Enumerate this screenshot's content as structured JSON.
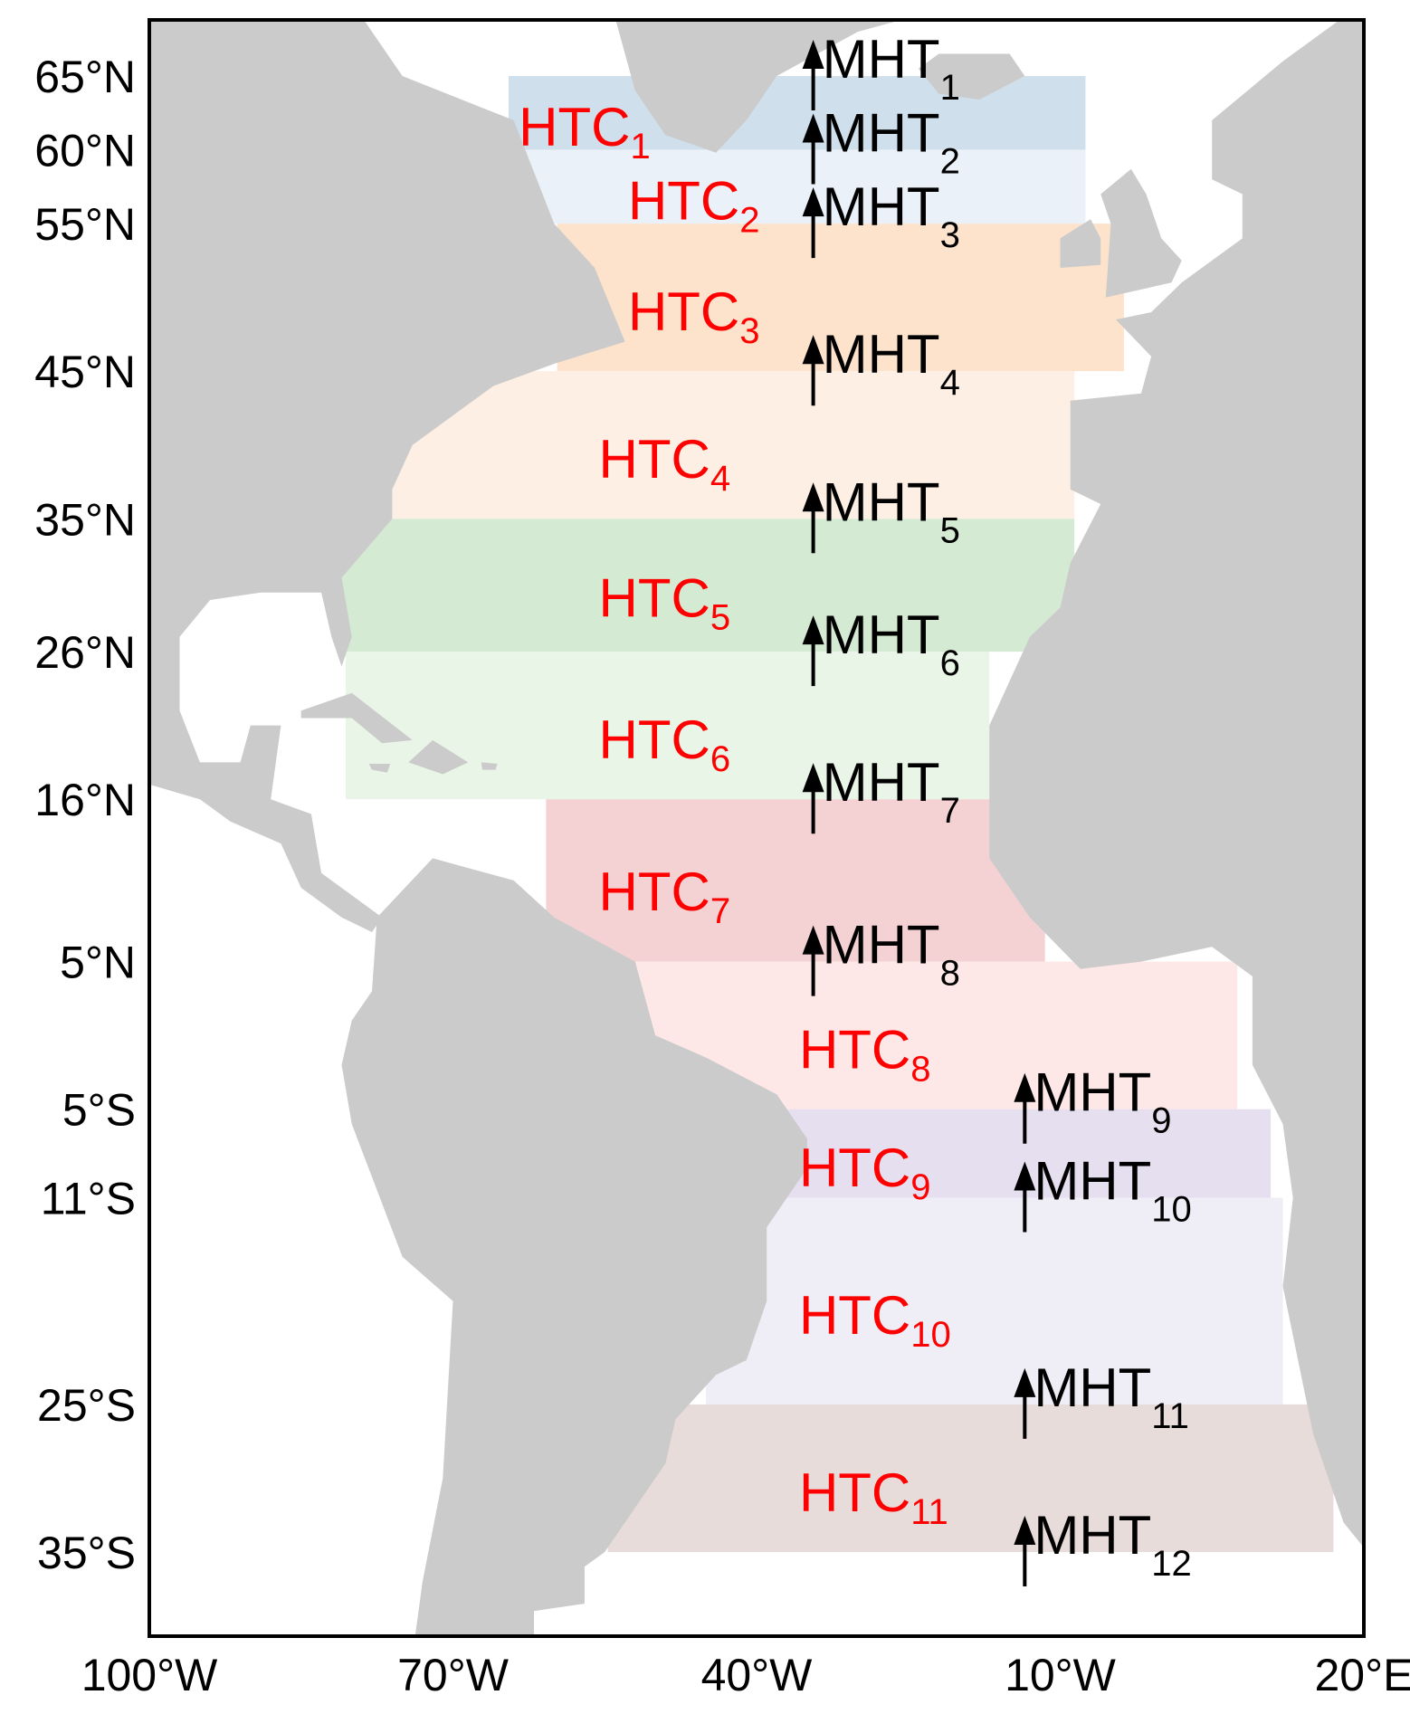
{
  "chart_data": {
    "type": "map",
    "projection": "equirectangular",
    "xlim": [
      -100,
      20
    ],
    "ylim": [
      -40.7,
      68.8
    ],
    "land_color": "#cbcbcb",
    "xticks": [
      {
        "value": -100,
        "label": "100°W"
      },
      {
        "value": -70,
        "label": "70°W"
      },
      {
        "value": -40,
        "label": "40°W"
      },
      {
        "value": -10,
        "label": "10°W"
      },
      {
        "value": 20,
        "label": "20°E"
      }
    ],
    "yticks": [
      {
        "value": 65,
        "label": "65°N"
      },
      {
        "value": 60,
        "label": "60°N"
      },
      {
        "value": 55,
        "label": "55°N"
      },
      {
        "value": 45,
        "label": "45°N"
      },
      {
        "value": 35,
        "label": "35°N"
      },
      {
        "value": 26,
        "label": "26°N"
      },
      {
        "value": 16,
        "label": "16°N"
      },
      {
        "value": 5,
        "label": "5°N"
      },
      {
        "value": -5,
        "label": "5°S"
      },
      {
        "value": -11,
        "label": "11°S"
      },
      {
        "value": -25,
        "label": "25°S"
      },
      {
        "value": -35,
        "label": "35°S"
      }
    ],
    "bands": [
      {
        "label": "HTC",
        "sub": "1",
        "lat": [
          65,
          60
        ],
        "lon": [
          -64.5,
          -7.5
        ],
        "color": "#cfe0ec"
      },
      {
        "label": "HTC",
        "sub": "2",
        "lat": [
          60,
          55
        ],
        "lon": [
          -64.5,
          -7.5
        ],
        "color": "#ebf1f9"
      },
      {
        "label": "HTC",
        "sub": "3",
        "lat": [
          55,
          45
        ],
        "lon": [
          -59.7,
          -3.7
        ],
        "color": "#fde3cc"
      },
      {
        "label": "HTC",
        "sub": "4",
        "lat": [
          45,
          35
        ],
        "lon": [
          -76,
          -8.6
        ],
        "color": "#fdefe3"
      },
      {
        "label": "HTC",
        "sub": "5",
        "lat": [
          35,
          26
        ],
        "lon": [
          -81,
          -8.6
        ],
        "color": "#d5ead3"
      },
      {
        "label": "HTC",
        "sub": "6",
        "lat": [
          26,
          16
        ],
        "lon": [
          -80.6,
          -17
        ],
        "color": "#e9f5e6"
      },
      {
        "label": "HTC",
        "sub": "7",
        "lat": [
          16,
          5
        ],
        "lon": [
          -60.8,
          -11.5
        ],
        "color": "#f4d2d4"
      },
      {
        "label": "HTC",
        "sub": "8",
        "lat": [
          5,
          -5
        ],
        "lon": [
          -54,
          7.5
        ],
        "color": "#fde8e7"
      },
      {
        "label": "HTC",
        "sub": "9",
        "lat": [
          -5,
          -11
        ],
        "lon": [
          -38.7,
          10.8
        ],
        "color": "#e6dff0"
      },
      {
        "label": "HTC",
        "sub": "10",
        "lat": [
          -11,
          -25
        ],
        "lon": [
          -45,
          12
        ],
        "color": "#efedf5"
      },
      {
        "label": "HTC",
        "sub": "11",
        "lat": [
          -25,
          -35
        ],
        "lon": [
          -54.7,
          17
        ],
        "color": "#e8dcdb"
      }
    ],
    "transports": [
      {
        "label": "MHT",
        "sub": "1",
        "lat": 65,
        "lon": -34.4
      },
      {
        "label": "MHT",
        "sub": "2",
        "lat": 60,
        "lon": -34.4
      },
      {
        "label": "MHT",
        "sub": "3",
        "lat": 55,
        "lon": -34.4
      },
      {
        "label": "MHT",
        "sub": "4",
        "lat": 45,
        "lon": -34.4
      },
      {
        "label": "MHT",
        "sub": "5",
        "lat": 35,
        "lon": -34.4
      },
      {
        "label": "MHT",
        "sub": "6",
        "lat": 26,
        "lon": -34.4
      },
      {
        "label": "MHT",
        "sub": "7",
        "lat": 16,
        "lon": -34.4
      },
      {
        "label": "MHT",
        "sub": "8",
        "lat": 5,
        "lon": -34.4
      },
      {
        "label": "MHT",
        "sub": "9",
        "lat": -5,
        "lon": -13.5
      },
      {
        "label": "MHT",
        "sub": "10",
        "lat": -11,
        "lon": -13.5
      },
      {
        "label": "MHT",
        "sub": "11",
        "lat": -25,
        "lon": -13.5
      },
      {
        "label": "MHT",
        "sub": "12",
        "lat": -35,
        "lon": -13.5
      }
    ]
  }
}
